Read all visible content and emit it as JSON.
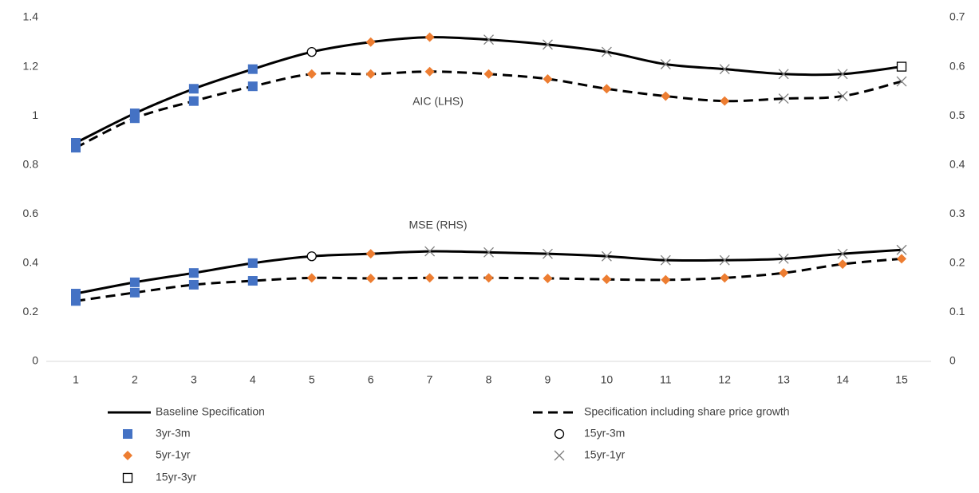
{
  "chart_data": {
    "type": "line",
    "categories": [
      1,
      2,
      3,
      4,
      5,
      6,
      7,
      8,
      9,
      10,
      11,
      12,
      13,
      14,
      15
    ],
    "ylim": [
      0,
      1.4
    ],
    "yticks": [
      0,
      0.2,
      0.4,
      0.6,
      0.8,
      1,
      1.2,
      1.4
    ],
    "y2lim": [
      0,
      0.7
    ],
    "y2ticks": [
      0,
      0.1,
      0.2,
      0.3,
      0.4,
      0.5,
      0.6,
      0.7
    ],
    "grid": false,
    "annotations": [
      "AIC (LHS)",
      "MSE (RHS)"
    ],
    "marker_types": [
      {
        "name": "3yr-3m",
        "shape": "square",
        "color": "#4472c4"
      },
      {
        "name": "15yr-3m",
        "shape": "circle",
        "color": "#000000"
      },
      {
        "name": "5yr-1yr",
        "shape": "diamond",
        "color": "#ed7d31"
      },
      {
        "name": "15yr-1yr",
        "shape": "cross",
        "color": "#7f7f7f"
      },
      {
        "name": "15yr-3yr",
        "shape": "open-square",
        "color": "#000000"
      }
    ],
    "series": [
      {
        "name": "Baseline Specification",
        "color": "#000000",
        "dash": "solid",
        "axis": "y",
        "values": [
          0.89,
          1.01,
          1.11,
          1.19,
          1.26,
          1.3,
          1.32,
          1.31,
          1.29,
          1.26,
          1.21,
          1.19,
          1.17,
          1.17,
          1.2
        ],
        "markers": [
          "3yr-3m",
          "3yr-3m",
          "3yr-3m",
          "3yr-3m",
          "15yr-3m",
          "5yr-1yr",
          "5yr-1yr",
          "15yr-1yr",
          "15yr-1yr",
          "15yr-1yr",
          "15yr-1yr",
          "15yr-1yr",
          "15yr-1yr",
          "15yr-1yr",
          "15yr-3yr"
        ]
      },
      {
        "name": "Specification including share price growth",
        "color": "#000000",
        "dash": "dashed",
        "axis": "y",
        "values": [
          0.87,
          0.99,
          1.06,
          1.12,
          1.17,
          1.17,
          1.18,
          1.17,
          1.15,
          1.11,
          1.08,
          1.06,
          1.07,
          1.08,
          1.14
        ],
        "markers": [
          "3yr-3m",
          "3yr-3m",
          "3yr-3m",
          "3yr-3m",
          "5yr-1yr",
          "5yr-1yr",
          "5yr-1yr",
          "5yr-1yr",
          "5yr-1yr",
          "5yr-1yr",
          "5yr-1yr",
          "5yr-1yr",
          "15yr-1yr",
          "15yr-1yr",
          "15yr-1yr"
        ]
      },
      {
        "name": "Baseline Specification",
        "color": "#000000",
        "dash": "solid",
        "axis": "y2",
        "values": [
          0.138,
          0.161,
          0.18,
          0.2,
          0.214,
          0.219,
          0.224,
          0.222,
          0.219,
          0.214,
          0.206,
          0.206,
          0.209,
          0.219,
          0.227
        ],
        "markers": [
          "3yr-3m",
          "3yr-3m",
          "3yr-3m",
          "3yr-3m",
          "15yr-3m",
          "5yr-1yr",
          "15yr-1yr",
          "15yr-1yr",
          "15yr-1yr",
          "15yr-1yr",
          "15yr-1yr",
          "15yr-1yr",
          "15yr-1yr",
          "15yr-1yr",
          "15yr-1yr"
        ]
      },
      {
        "name": "Specification including share price growth",
        "color": "#000000",
        "dash": "dashed",
        "axis": "y2",
        "values": [
          0.123,
          0.14,
          0.156,
          0.164,
          0.17,
          0.169,
          0.17,
          0.17,
          0.169,
          0.167,
          0.166,
          0.17,
          0.18,
          0.198,
          0.209
        ],
        "markers": [
          "3yr-3m",
          "3yr-3m",
          "3yr-3m",
          "3yr-3m",
          "5yr-1yr",
          "5yr-1yr",
          "5yr-1yr",
          "5yr-1yr",
          "5yr-1yr",
          "5yr-1yr",
          "5yr-1yr",
          "5yr-1yr",
          "5yr-1yr",
          "5yr-1yr",
          "5yr-1yr"
        ]
      }
    ]
  }
}
